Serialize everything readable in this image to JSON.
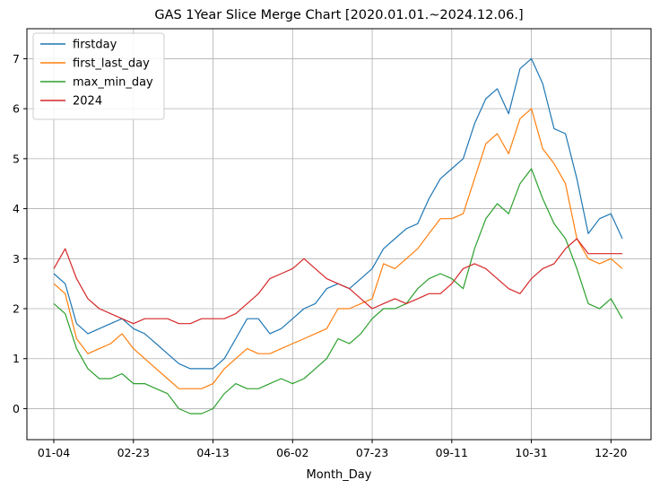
{
  "chart_data": {
    "type": "line",
    "title": "GAS 1Year Slice Merge Chart [2020.01.01.~2024.12.06.]",
    "xlabel": "Month_Day",
    "ylabel": "",
    "x_ticks": [
      "01-04",
      "02-23",
      "04-13",
      "06-02",
      "07-23",
      "09-11",
      "10-31",
      "12-20"
    ],
    "y_ticks": [
      0,
      1,
      2,
      3,
      4,
      5,
      6,
      7
    ],
    "ylim": [
      -0.62,
      7.6
    ],
    "grid": true,
    "legend_position": "top-left",
    "colors": {
      "firstday": "#1f77b4",
      "first_last_day": "#ff7f0e",
      "max_min_day": "#2ca02c",
      "2024": "#d62728"
    },
    "x": [
      "01-04",
      "01-11",
      "01-18",
      "01-25",
      "02-01",
      "02-08",
      "02-15",
      "02-23",
      "03-01",
      "03-08",
      "03-15",
      "03-22",
      "03-29",
      "04-05",
      "04-13",
      "04-20",
      "04-27",
      "05-04",
      "05-11",
      "05-18",
      "05-25",
      "06-02",
      "06-09",
      "06-16",
      "06-23",
      "06-30",
      "07-07",
      "07-14",
      "07-23",
      "07-30",
      "08-06",
      "08-13",
      "08-20",
      "08-27",
      "09-03",
      "09-11",
      "09-18",
      "09-25",
      "10-02",
      "10-09",
      "10-16",
      "10-23",
      "10-31",
      "11-07",
      "11-14",
      "11-21",
      "11-28",
      "12-05",
      "12-12",
      "12-20",
      "12-27"
    ],
    "series": [
      {
        "name": "firstday",
        "values": [
          2.7,
          2.5,
          1.7,
          1.5,
          1.6,
          1.7,
          1.8,
          1.6,
          1.5,
          1.3,
          1.1,
          0.9,
          0.8,
          0.8,
          0.8,
          1.0,
          1.4,
          1.8,
          1.8,
          1.5,
          1.6,
          1.8,
          2.0,
          2.1,
          2.4,
          2.5,
          2.4,
          2.6,
          2.8,
          3.2,
          3.4,
          3.6,
          3.7,
          4.2,
          4.6,
          4.8,
          5.0,
          5.7,
          6.2,
          6.4,
          5.9,
          6.8,
          7.0,
          6.5,
          5.6,
          5.5,
          4.6,
          3.5,
          3.8,
          3.9,
          3.4
        ],
        "start_index": 0
      },
      {
        "name": "first_last_day",
        "values": [
          2.5,
          2.3,
          1.4,
          1.1,
          1.2,
          1.3,
          1.5,
          1.2,
          1.0,
          0.8,
          0.6,
          0.4,
          0.4,
          0.4,
          0.5,
          0.8,
          1.0,
          1.2,
          1.1,
          1.1,
          1.2,
          1.3,
          1.4,
          1.5,
          1.6,
          2.0,
          2.0,
          2.1,
          2.2,
          2.9,
          2.8,
          3.0,
          3.2,
          3.5,
          3.8,
          3.8,
          3.9,
          4.6,
          5.3,
          5.5,
          5.1,
          5.8,
          6.0,
          5.2,
          4.9,
          4.5,
          3.4,
          3.0,
          2.9,
          3.0,
          2.8
        ],
        "start_index": 0
      },
      {
        "name": "max_min_day",
        "values": [
          2.1,
          1.9,
          1.2,
          0.8,
          0.6,
          0.6,
          0.7,
          0.5,
          0.5,
          0.4,
          0.3,
          0.0,
          -0.1,
          -0.1,
          0.0,
          0.3,
          0.5,
          0.4,
          0.4,
          0.5,
          0.6,
          0.5,
          0.6,
          0.8,
          1.0,
          1.4,
          1.3,
          1.5,
          1.8,
          2.0,
          2.0,
          2.1,
          2.4,
          2.6,
          2.7,
          2.6,
          2.4,
          3.2,
          3.8,
          4.1,
          3.9,
          4.5,
          4.8,
          4.2,
          3.7,
          3.4,
          2.8,
          2.1,
          2.0,
          2.2,
          1.8
        ],
        "start_index": 0
      },
      {
        "name": "2024",
        "values": [
          2.8,
          3.2,
          2.6,
          2.2,
          2.0,
          1.9,
          1.8,
          1.7,
          1.8,
          1.8,
          1.8,
          1.7,
          1.7,
          1.8,
          1.8,
          1.8,
          1.9,
          2.1,
          2.3,
          2.6,
          2.7,
          2.8,
          3.0,
          2.8,
          2.6,
          2.5,
          2.4,
          2.2,
          2.0,
          2.1,
          2.2,
          2.1,
          2.2,
          2.3,
          2.3,
          2.5,
          2.8,
          2.9,
          2.8,
          2.6,
          2.4,
          2.3,
          2.6,
          2.8,
          2.9,
          3.2,
          3.4,
          3.1,
          3.1,
          3.1,
          3.1
        ],
        "start_index": 0
      }
    ]
  }
}
